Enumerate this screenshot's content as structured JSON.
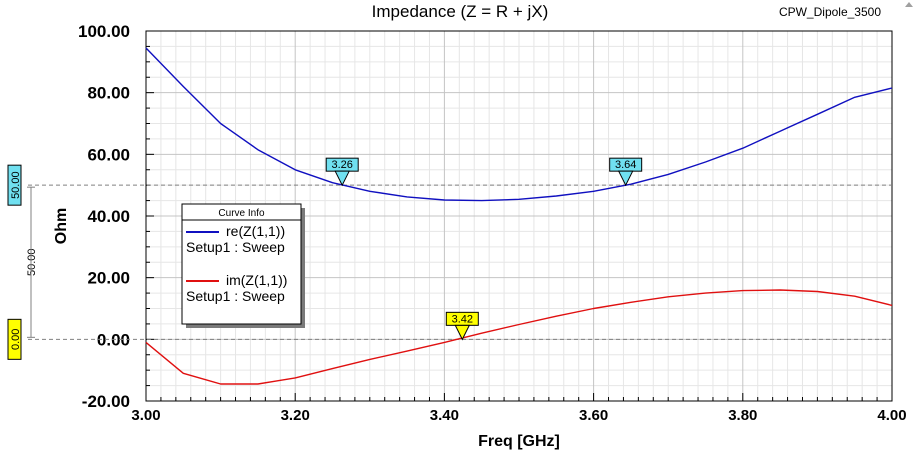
{
  "chart_data": {
    "type": "line",
    "title": "Impedance (Z = R + jX)",
    "project_label": "CPW_Dipole_3500",
    "xlabel": "Freq [GHz]",
    "ylabel": "Ohm",
    "xlim": [
      3.0,
      4.0
    ],
    "ylim": [
      -20.0,
      100.0
    ],
    "x_ticks": [
      "3.00",
      "3.20",
      "3.40",
      "3.60",
      "3.80",
      "4.00"
    ],
    "x_tick_values": [
      3.0,
      3.2,
      3.4,
      3.6,
      3.8,
      4.0
    ],
    "y_ticks": [
      "100.00",
      "80.00",
      "60.00",
      "40.00",
      "20.00",
      "0.00",
      "-20.00"
    ],
    "y_tick_values": [
      100,
      80,
      60,
      40,
      20,
      0,
      -20
    ],
    "grid": true,
    "legend": {
      "title": "Curve Info",
      "position": "left",
      "entries": [
        {
          "name": "re(Z(1,1))",
          "sub": "Setup1 : Sweep",
          "color": "#1010c0"
        },
        {
          "name": "im(Z(1,1))",
          "sub": "Setup1 : Sweep",
          "color": "#e01010"
        }
      ]
    },
    "series": [
      {
        "name": "re(Z(1,1))",
        "color": "#1010c0",
        "points": [
          [
            3.0,
            94.5
          ],
          [
            3.05,
            82.0
          ],
          [
            3.1,
            70.0
          ],
          [
            3.15,
            61.5
          ],
          [
            3.2,
            55.0
          ],
          [
            3.25,
            50.8
          ],
          [
            3.3,
            48.0
          ],
          [
            3.35,
            46.2
          ],
          [
            3.4,
            45.2
          ],
          [
            3.45,
            45.0
          ],
          [
            3.5,
            45.4
          ],
          [
            3.55,
            46.5
          ],
          [
            3.6,
            48.0
          ],
          [
            3.65,
            50.3
          ],
          [
            3.7,
            53.5
          ],
          [
            3.75,
            57.5
          ],
          [
            3.8,
            62.0
          ],
          [
            3.85,
            67.5
          ],
          [
            3.9,
            73.0
          ],
          [
            3.95,
            78.5
          ],
          [
            4.0,
            81.5
          ]
        ]
      },
      {
        "name": "im(Z(1,1))",
        "color": "#e01010",
        "points": [
          [
            3.0,
            -1.0
          ],
          [
            3.05,
            -11.0
          ],
          [
            3.1,
            -14.5
          ],
          [
            3.15,
            -14.5
          ],
          [
            3.2,
            -12.5
          ],
          [
            3.25,
            -9.5
          ],
          [
            3.3,
            -6.5
          ],
          [
            3.35,
            -3.8
          ],
          [
            3.4,
            -1.0
          ],
          [
            3.45,
            2.0
          ],
          [
            3.5,
            4.8
          ],
          [
            3.55,
            7.5
          ],
          [
            3.6,
            10.0
          ],
          [
            3.65,
            12.0
          ],
          [
            3.7,
            13.8
          ],
          [
            3.75,
            15.0
          ],
          [
            3.8,
            15.8
          ],
          [
            3.85,
            16.0
          ],
          [
            3.9,
            15.5
          ],
          [
            3.95,
            14.0
          ],
          [
            4.0,
            11.0
          ]
        ]
      }
    ],
    "reference_lines": [
      {
        "value": 50.0,
        "label": "50.00",
        "color": "#70e0f0"
      },
      {
        "value": 0.0,
        "label": "0.00",
        "color": "#ffff00"
      }
    ],
    "range_marker_label": "50.00",
    "markers": [
      {
        "label": "3.26",
        "x": 3.263,
        "y": 50.0,
        "color": "#70e0f0"
      },
      {
        "label": "3.64",
        "x": 3.643,
        "y": 50.0,
        "color": "#70e0f0"
      },
      {
        "label": "3.42",
        "x": 3.424,
        "y": 0.0,
        "color": "#ffff00"
      }
    ]
  }
}
